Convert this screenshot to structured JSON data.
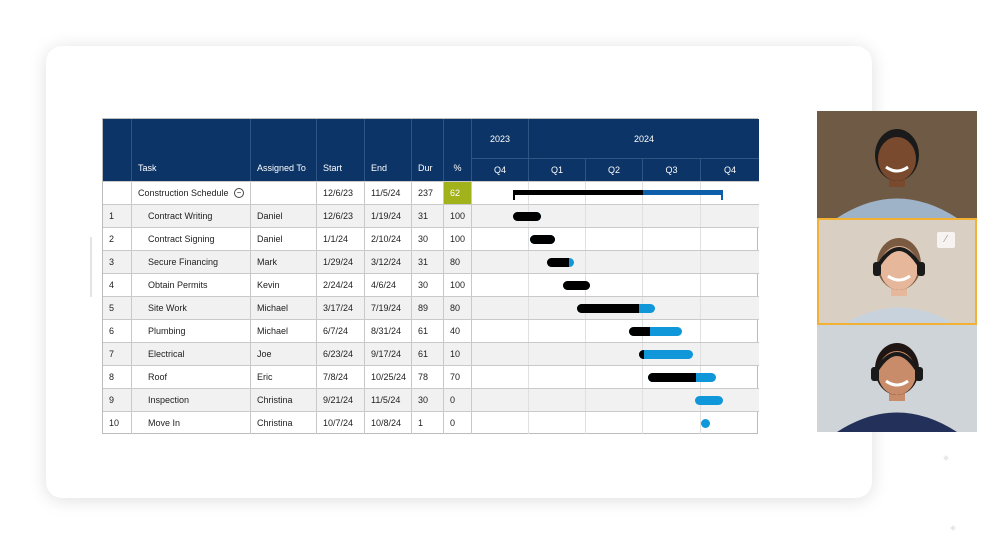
{
  "gantt": {
    "headers": {
      "task": "Task",
      "assigned": "Assigned To",
      "start": "Start",
      "end": "End",
      "dur": "Dur",
      "pct": "%"
    },
    "years": [
      "2023",
      "2024"
    ],
    "quarters": [
      "Q4",
      "Q1",
      "Q2",
      "Q3",
      "Q4"
    ],
    "colors": {
      "header_bg": "#0c3466",
      "complete": "#000000",
      "remaining": "#0f97d9",
      "summary_remaining": "#0c5fa8",
      "pct_highlight": "#a2b21a"
    },
    "summary": {
      "task": "Construction Schedule",
      "collapse_icon": "collapse-circle-icon",
      "start": "12/6/23",
      "end": "11/5/24",
      "dur": "237",
      "pct": "62",
      "percent_complete": 62
    },
    "rows": [
      {
        "num": "1",
        "task": "Contract Writing",
        "assigned": "Daniel",
        "start": "12/6/23",
        "end": "1/19/24",
        "dur": "31",
        "pct": "100",
        "percent_complete": 100
      },
      {
        "num": "2",
        "task": "Contract Signing",
        "assigned": "Daniel",
        "start": "1/1/24",
        "end": "2/10/24",
        "dur": "30",
        "pct": "100",
        "percent_complete": 100
      },
      {
        "num": "3",
        "task": "Secure Financing",
        "assigned": "Mark",
        "start": "1/29/24",
        "end": "3/12/24",
        "dur": "31",
        "pct": "80",
        "percent_complete": 80
      },
      {
        "num": "4",
        "task": "Obtain Permits",
        "assigned": "Kevin",
        "start": "2/24/24",
        "end": "4/6/24",
        "dur": "30",
        "pct": "100",
        "percent_complete": 100
      },
      {
        "num": "5",
        "task": "Site Work",
        "assigned": "Michael",
        "start": "3/17/24",
        "end": "7/19/24",
        "dur": "89",
        "pct": "80",
        "percent_complete": 80
      },
      {
        "num": "6",
        "task": "Plumbing",
        "assigned": "Michael",
        "start": "6/7/24",
        "end": "8/31/24",
        "dur": "61",
        "pct": "40",
        "percent_complete": 40
      },
      {
        "num": "7",
        "task": "Electrical",
        "assigned": "Joe",
        "start": "6/23/24",
        "end": "9/17/24",
        "dur": "61",
        "pct": "10",
        "percent_complete": 10
      },
      {
        "num": "8",
        "task": "Roof",
        "assigned": "Eric",
        "start": "7/8/24",
        "end": "10/25/24",
        "dur": "78",
        "pct": "70",
        "percent_complete": 70
      },
      {
        "num": "9",
        "task": "Inspection",
        "assigned": "Christina",
        "start": "9/21/24",
        "end": "11/5/24",
        "dur": "30",
        "pct": "0",
        "percent_complete": 0
      },
      {
        "num": "10",
        "task": "Move In",
        "assigned": "Christina",
        "start": "10/7/24",
        "end": "10/8/24",
        "dur": "1",
        "pct": "0",
        "percent_complete": 0
      }
    ]
  },
  "video_call": {
    "participants": [
      {
        "name": "participant-1",
        "skin": "#7a4a2e",
        "hair": "#1a1a1a",
        "shirt": "#9fb3c8",
        "bg": "#6e5a45"
      },
      {
        "name": "participant-2",
        "skin": "#e7b79c",
        "hair": "#7a5a40",
        "shirt": "#c8d2dd",
        "bg": "#d9cfc2",
        "active": true,
        "headset": true,
        "mute_icon": "mic-off-icon"
      },
      {
        "name": "participant-3",
        "skin": "#c98c6a",
        "hair": "#1f1512",
        "shirt": "#23305a",
        "bg": "#cfd4d8",
        "headset": true
      }
    ]
  }
}
